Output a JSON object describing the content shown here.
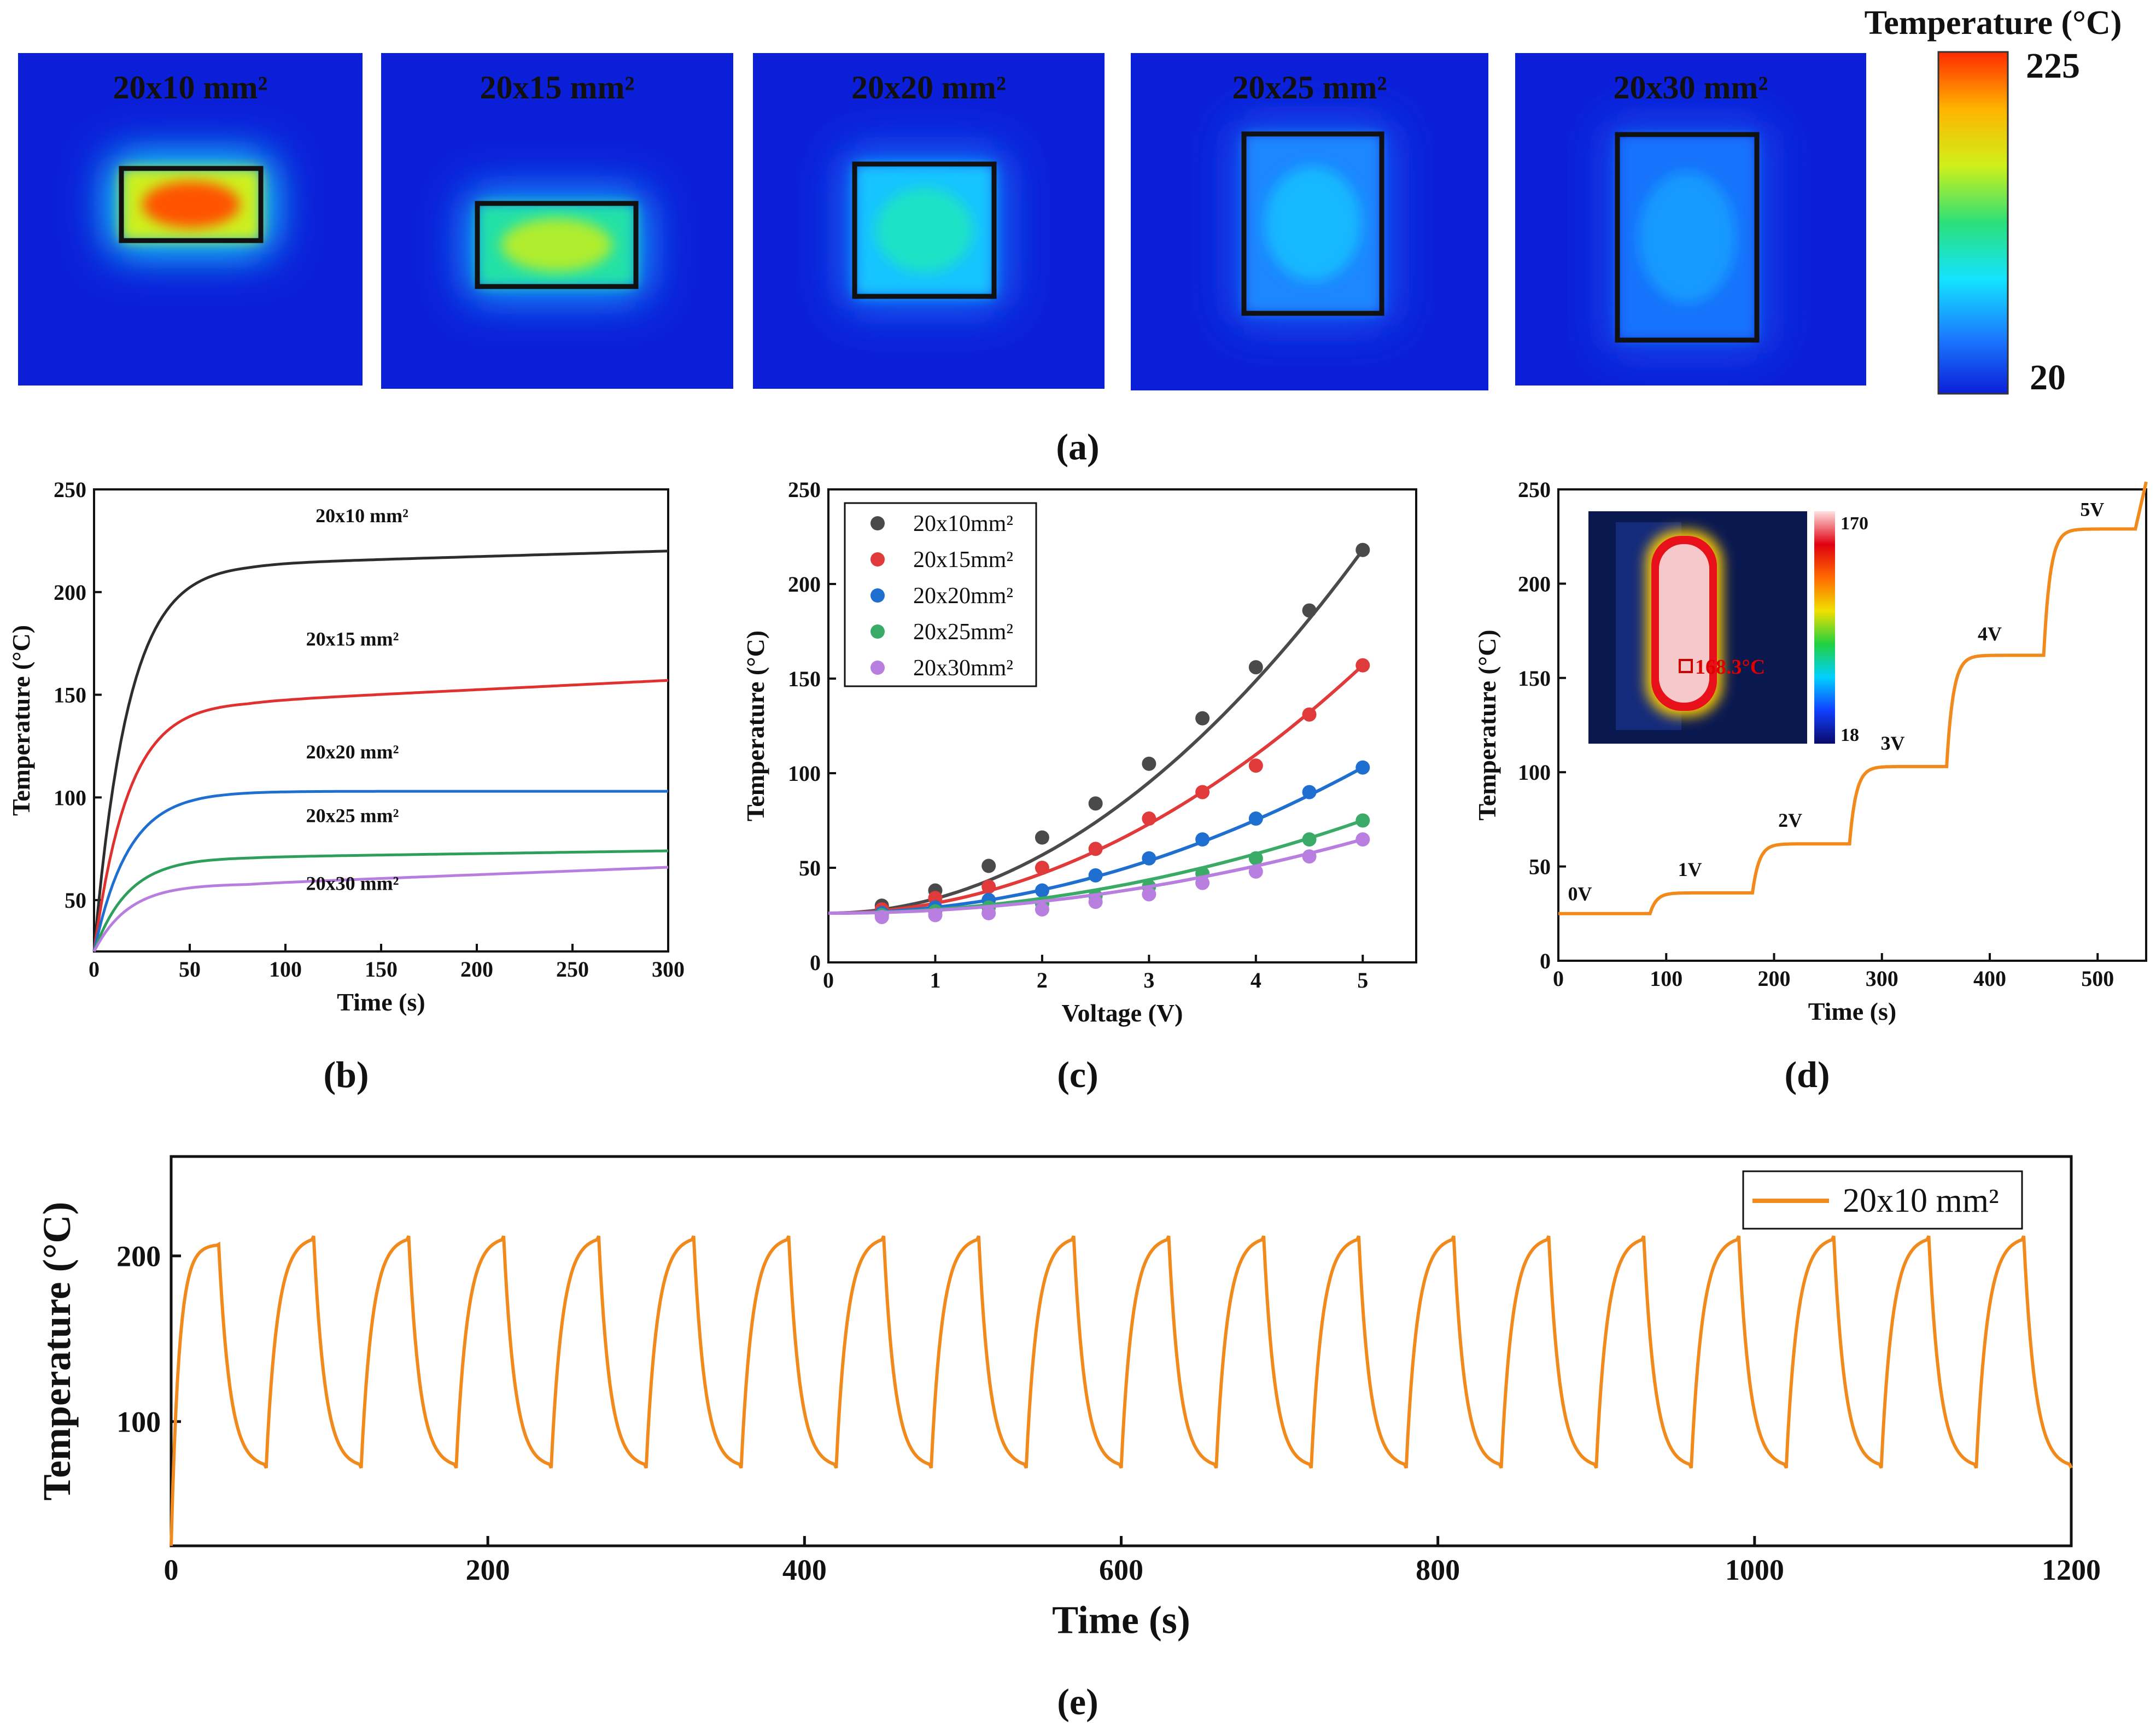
{
  "panel_labels": {
    "a": "(a)",
    "b": "(b)",
    "c": "(c)",
    "d": "(d)",
    "e": "(e)"
  },
  "thermal_maps": {
    "colorbar_title": "Temperature (°C)",
    "colorbar_max": "225",
    "colorbar_min": "20",
    "colors": [
      "#0b1fd9",
      "#1b7cff",
      "#14e3ff",
      "#2ae07a",
      "#cff01a",
      "#ffb400",
      "#ff2a00"
    ],
    "items": [
      {
        "label": "20x10 mm²",
        "peak": 215
      },
      {
        "label": "20x15 mm²",
        "peak": 150
      },
      {
        "label": "20x20 mm²",
        "peak": 103
      },
      {
        "label": "20x25 mm²",
        "peak": 74
      },
      {
        "label": "20x30 mm²",
        "peak": 64
      }
    ]
  },
  "chart_data": [
    {
      "id": "b",
      "type": "line",
      "xlabel": "Time (s)",
      "ylabel": "Temperature (°C)",
      "xlim": [
        0,
        300
      ],
      "ylim": [
        25,
        250
      ],
      "xticks": [
        0,
        50,
        100,
        150,
        200,
        250,
        300
      ],
      "yticks": [
        50,
        100,
        150,
        200,
        250
      ],
      "tau": 18,
      "series": [
        {
          "name": "20x10 mm²",
          "color": "#2d2d2d",
          "start": 25,
          "plateau": 214,
          "final": 220,
          "label_x": 140,
          "label_y": 234
        },
        {
          "name": "20x15 mm²",
          "color": "#e03131",
          "start": 25,
          "plateau": 147,
          "final": 157,
          "label_x": 135,
          "label_y": 174
        },
        {
          "name": "20x20 mm²",
          "color": "#1f6fd1",
          "start": 25,
          "plateau": 103,
          "final": 103,
          "label_x": 135,
          "label_y": 119
        },
        {
          "name": "20x25 mm²",
          "color": "#2e9e5b",
          "start": 25,
          "plateau": 71,
          "final": 74,
          "label_x": 135,
          "label_y": 88
        },
        {
          "name": "20x30 mm²",
          "color": "#b77ee0",
          "start": 25,
          "plateau": 58,
          "final": 66,
          "label_x": 135,
          "label_y": 55
        }
      ]
    },
    {
      "id": "c",
      "type": "scatter",
      "xlabel": "Voltage (V)",
      "ylabel": "Temperature (°C)",
      "xlim": [
        0,
        5.5
      ],
      "ylim": [
        0,
        250
      ],
      "xticks": [
        0,
        1,
        2,
        3,
        4,
        5
      ],
      "yticks": [
        0,
        50,
        100,
        150,
        200,
        250
      ],
      "x": [
        0.5,
        1,
        1.5,
        2,
        2.5,
        3,
        3.5,
        4,
        4.5,
        5
      ],
      "series": [
        {
          "name": "20x10mm²",
          "color": "#4a4a4a",
          "values": [
            30,
            38,
            51,
            66,
            84,
            105,
            129,
            156,
            186,
            218
          ]
        },
        {
          "name": "20x15mm²",
          "color": "#e03a3a",
          "values": [
            28,
            34,
            40,
            50,
            60,
            76,
            90,
            104,
            131,
            157
          ]
        },
        {
          "name": "20x20mm²",
          "color": "#1f6fd1",
          "values": [
            26,
            29,
            33,
            38,
            46,
            55,
            65,
            76,
            90,
            103
          ]
        },
        {
          "name": "20x25mm²",
          "color": "#3aab66",
          "values": [
            25,
            27,
            29,
            31,
            35,
            40,
            47,
            55,
            65,
            75
          ]
        },
        {
          "name": "20x30mm²",
          "color": "#b87ee0",
          "values": [
            24,
            25,
            26,
            28,
            32,
            36,
            42,
            48,
            56,
            65
          ]
        }
      ]
    },
    {
      "id": "d",
      "type": "line",
      "xlabel": "Time (s)",
      "ylabel": "Temperature (°C)",
      "xlim": [
        0,
        545
      ],
      "ylim": [
        0,
        250
      ],
      "xticks": [
        0,
        100,
        200,
        300,
        400,
        500
      ],
      "yticks": [
        0,
        50,
        100,
        150,
        200,
        250
      ],
      "color": "#f08a1c",
      "steps": [
        {
          "label": "0V",
          "t0": 0,
          "level": 25,
          "label_x": 20,
          "label_y": 32
        },
        {
          "label": "1V",
          "t0": 85,
          "level": 36,
          "label_x": 122,
          "label_y": 45
        },
        {
          "label": "2V",
          "t0": 180,
          "level": 62,
          "label_x": 215,
          "label_y": 71
        },
        {
          "label": "3V",
          "t0": 270,
          "level": 103,
          "label_x": 310,
          "label_y": 112
        },
        {
          "label": "4V",
          "t0": 360,
          "level": 162,
          "label_x": 400,
          "label_y": 170
        },
        {
          "label": "5V",
          "t0": 450,
          "level": 229,
          "label_x": 495,
          "label_y": 236
        }
      ],
      "inset": {
        "max": "170",
        "min": "18",
        "readout": "168.3°C"
      }
    },
    {
      "id": "e",
      "type": "line",
      "xlabel": "Time (s)",
      "ylabel": "Temperature (°C)",
      "xlim": [
        0,
        1200
      ],
      "ylim": [
        25,
        260
      ],
      "xticks": [
        0,
        200,
        400,
        600,
        800,
        1000,
        1200
      ],
      "yticks": [
        100,
        200
      ],
      "color": "#f08a1c",
      "legend": "20x10 mm²",
      "period": 60,
      "on_time": 30,
      "peak": 212,
      "low": 72,
      "start": 25
    }
  ]
}
